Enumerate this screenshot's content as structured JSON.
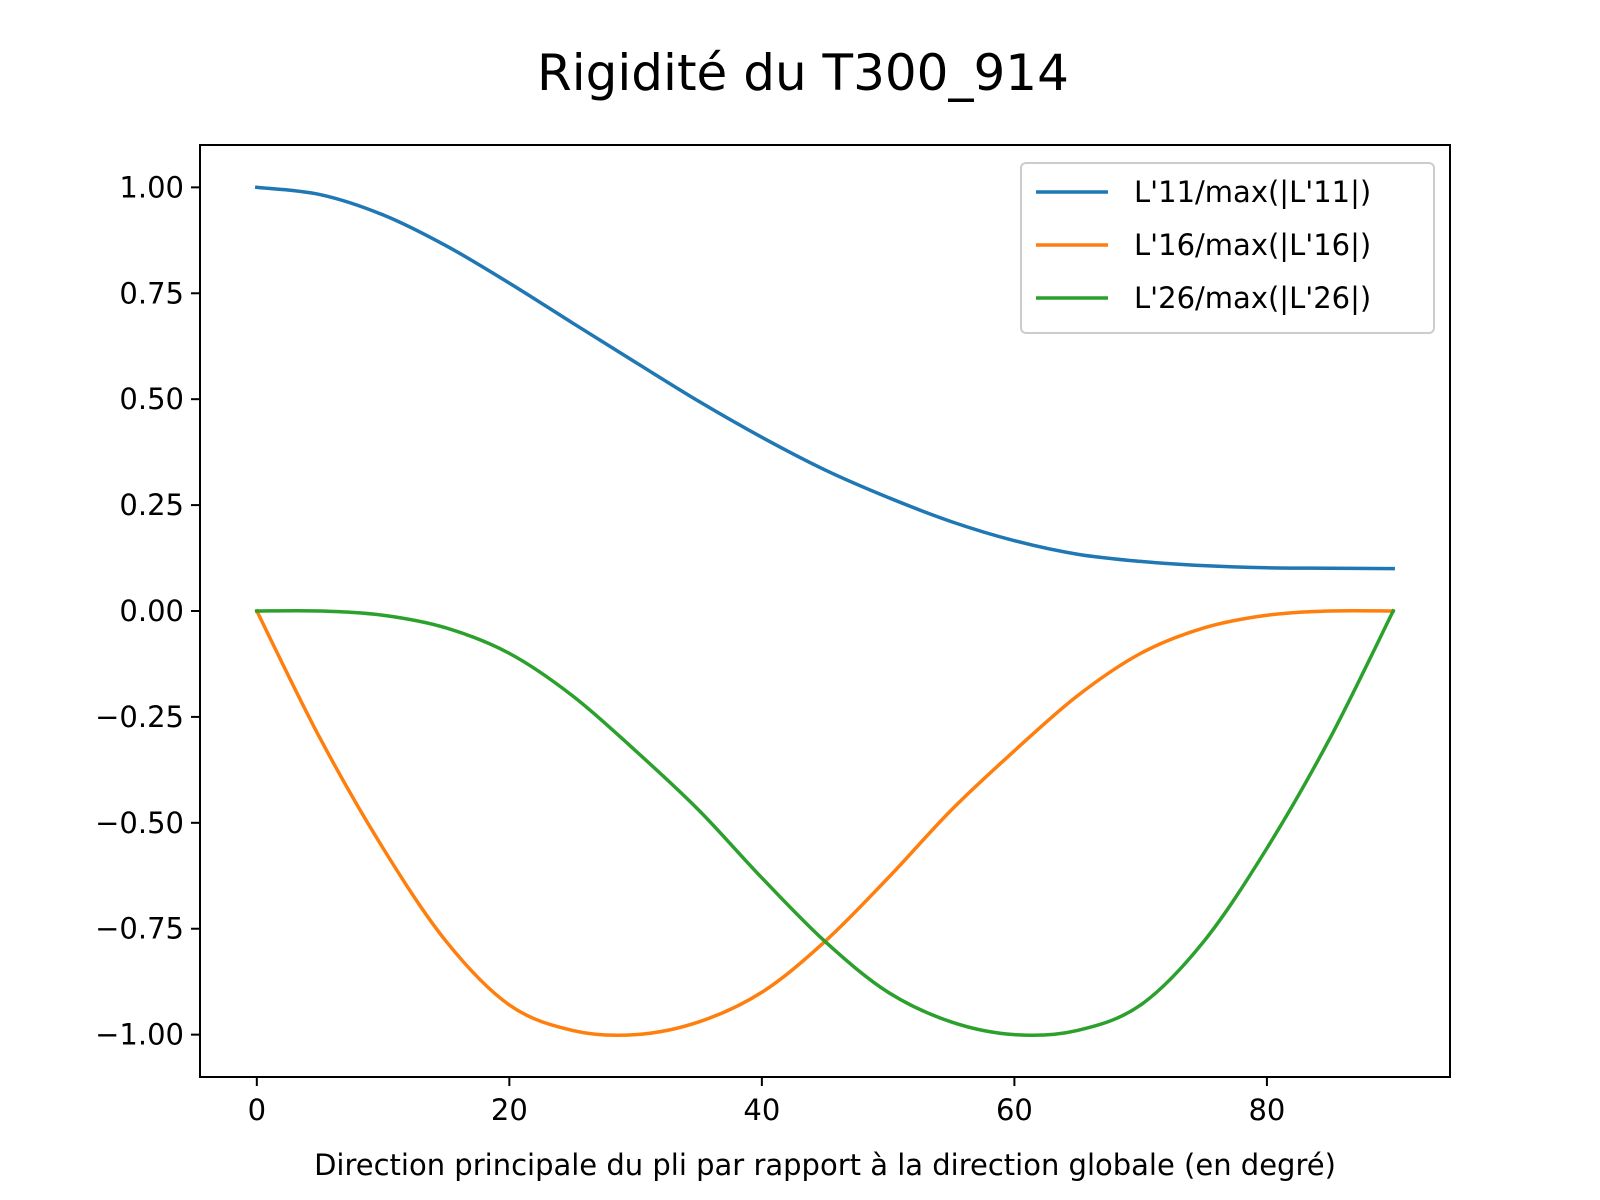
{
  "chart_data": {
    "type": "line",
    "title": "Rigidité du T300_914",
    "xlabel": "Direction principale du pli par rapport à la direction globale (en degré)",
    "ylabel": "",
    "xlim": [
      -4.5,
      94.5
    ],
    "ylim": [
      -1.1,
      1.1
    ],
    "xticks": [
      0,
      20,
      40,
      60,
      80
    ],
    "xtick_labels": [
      "0",
      "20",
      "40",
      "60",
      "80"
    ],
    "yticks": [
      1.0,
      0.75,
      0.5,
      0.25,
      0.0,
      -0.25,
      -0.5,
      -0.75,
      -1.0
    ],
    "ytick_labels": [
      "1.00",
      "0.75",
      "0.50",
      "0.25",
      "0.00",
      "−0.25",
      "−0.50",
      "−0.75",
      "−1.00"
    ],
    "grid": false,
    "legend_position": "top-right",
    "x": [
      0,
      5,
      10,
      15,
      20,
      25,
      30,
      35,
      40,
      45,
      50,
      55,
      60,
      65,
      70,
      75,
      80,
      85,
      90
    ],
    "series": [
      {
        "name": "L'11/max(|L'11|)",
        "color": "#1f77b4",
        "values": [
          1.0,
          0.983,
          0.935,
          0.862,
          0.774,
          0.68,
          0.587,
          0.495,
          0.41,
          0.333,
          0.268,
          0.211,
          0.166,
          0.134,
          0.117,
          0.107,
          0.102,
          0.101,
          0.1
        ]
      },
      {
        "name": "L'16/max(|L'16|)",
        "color": "#ff7f0e",
        "values": [
          0.0,
          -0.3,
          -0.56,
          -0.78,
          -0.93,
          -0.99,
          -1.0,
          -0.97,
          -0.9,
          -0.78,
          -0.63,
          -0.47,
          -0.33,
          -0.2,
          -0.1,
          -0.04,
          -0.01,
          0.0,
          0.0
        ]
      },
      {
        "name": "L'26/max(|L'26|)",
        "color": "#2ca02c",
        "values": [
          0.0,
          0.0,
          -0.01,
          -0.04,
          -0.1,
          -0.2,
          -0.33,
          -0.47,
          -0.63,
          -0.78,
          -0.9,
          -0.97,
          -1.0,
          -0.99,
          -0.93,
          -0.78,
          -0.56,
          -0.3,
          0.0
        ]
      }
    ]
  }
}
